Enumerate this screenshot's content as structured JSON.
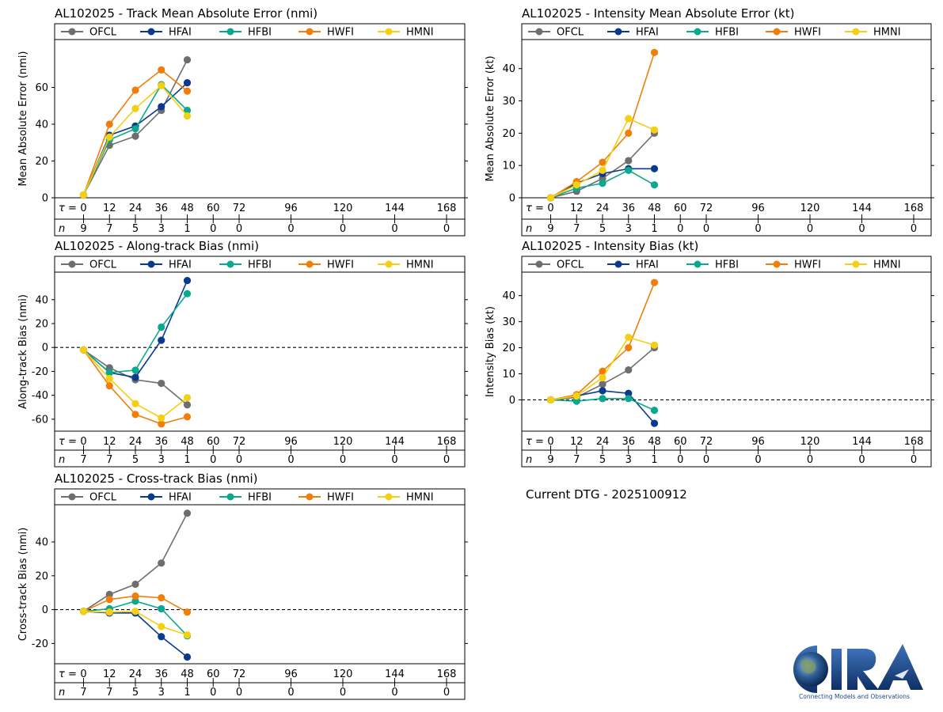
{
  "colors": {
    "OFCL": "#6e6e6e",
    "HFAI": "#0a3a8c",
    "HFBI": "#0aa88e",
    "HWFI": "#ef7f08",
    "HMNI": "#f5cf12"
  },
  "models": [
    "OFCL",
    "HFAI",
    "HFBI",
    "HWFI",
    "HMNI"
  ],
  "tau_label": "τ =",
  "n_label": "n",
  "tau_ticks": [
    "0",
    "12",
    "24",
    "36",
    "48",
    "60",
    "72",
    "96",
    "120",
    "144",
    "168"
  ],
  "current_dtg": "Current DTG - 2025100912",
  "logo_text": "CIRA",
  "logo_tagline": "Connecting Models and Observations",
  "chart_data": [
    {
      "type": "line",
      "title": "AL102025 - Track Mean Absolute Error (nmi)",
      "xlabel": "",
      "ylabel": "Mean Absolute Error (nmi)",
      "x": [
        0,
        12,
        24,
        36,
        48
      ],
      "ylim": [
        0,
        86
      ],
      "yticks": [
        0,
        20,
        40,
        60
      ],
      "zero_line": false,
      "n_values": [
        "9",
        "7",
        "5",
        "3",
        "1",
        "0",
        "0",
        "0",
        "0",
        "0",
        "0"
      ],
      "series": [
        {
          "name": "OFCL",
          "values": [
            1.5,
            28.5,
            33.5,
            47.5,
            75
          ]
        },
        {
          "name": "HFAI",
          "values": [
            1.5,
            34,
            39,
            49.5,
            62.5
          ]
        },
        {
          "name": "HFBI",
          "values": [
            1.5,
            31.5,
            37.5,
            61.5,
            47.5
          ]
        },
        {
          "name": "HWFI",
          "values": [
            1.5,
            40,
            58.5,
            69.5,
            58
          ]
        },
        {
          "name": "HMNI",
          "values": [
            1.5,
            33,
            48.5,
            61,
            44.5
          ]
        }
      ]
    },
    {
      "type": "line",
      "title": "AL102025 - Intensity Mean Absolute Error (kt)",
      "xlabel": "",
      "ylabel": "Mean Absolute Error (kt)",
      "x": [
        0,
        12,
        24,
        36,
        48
      ],
      "ylim": [
        0,
        49
      ],
      "yticks": [
        0,
        10,
        20,
        30,
        40
      ],
      "zero_line": false,
      "n_values": [
        "9",
        "7",
        "5",
        "3",
        "1",
        "0",
        "0",
        "0",
        "0",
        "0",
        "0"
      ],
      "series": [
        {
          "name": "OFCL",
          "values": [
            0,
            2,
            6,
            11.5,
            20
          ]
        },
        {
          "name": "HFAI",
          "values": [
            0,
            4.5,
            7.5,
            9,
            9
          ]
        },
        {
          "name": "HFBI",
          "values": [
            0,
            3,
            4.5,
            8.5,
            4
          ]
        },
        {
          "name": "HWFI",
          "values": [
            0,
            5,
            11,
            20,
            45
          ]
        },
        {
          "name": "HMNI",
          "values": [
            0,
            4,
            8.5,
            24.5,
            21
          ]
        }
      ]
    },
    {
      "type": "line",
      "title": "AL102025 - Along-track Bias (nmi)",
      "xlabel": "",
      "ylabel": "Along-track Bias (nmi)",
      "x": [
        0,
        12,
        24,
        36,
        48
      ],
      "ylim": [
        -70,
        63
      ],
      "yticks": [
        -60,
        -40,
        -20,
        0,
        20,
        40
      ],
      "zero_line": true,
      "n_values": [
        "7",
        "7",
        "5",
        "3",
        "1",
        "0",
        "0",
        "0",
        "0",
        "0",
        "0"
      ],
      "series": [
        {
          "name": "OFCL",
          "values": [
            -2,
            -17,
            -27,
            -30,
            -48
          ]
        },
        {
          "name": "HFAI",
          "values": [
            -2,
            -21,
            -25,
            6,
            56
          ]
        },
        {
          "name": "HFBI",
          "values": [
            -2,
            -21,
            -19,
            17,
            45
          ]
        },
        {
          "name": "HWFI",
          "values": [
            -2,
            -32,
            -56,
            -64,
            -58
          ]
        },
        {
          "name": "HMNI",
          "values": [
            -2,
            -26,
            -47,
            -59,
            -42
          ]
        }
      ]
    },
    {
      "type": "line",
      "title": "AL102025 - Intensity Bias (kt)",
      "xlabel": "",
      "ylabel": "Intensity Bias (kt)",
      "x": [
        0,
        12,
        24,
        36,
        48
      ],
      "ylim": [
        -12,
        49
      ],
      "yticks": [
        0,
        10,
        20,
        30,
        40
      ],
      "zero_line": true,
      "n_values": [
        "9",
        "7",
        "5",
        "3",
        "1",
        "0",
        "0",
        "0",
        "0",
        "0",
        "0"
      ],
      "series": [
        {
          "name": "OFCL",
          "values": [
            0,
            1,
            6,
            11.5,
            20
          ]
        },
        {
          "name": "HFAI",
          "values": [
            0,
            1.5,
            3.5,
            2.5,
            -9
          ]
        },
        {
          "name": "HFBI",
          "values": [
            0,
            -0.5,
            0.5,
            0.5,
            -4
          ]
        },
        {
          "name": "HWFI",
          "values": [
            0,
            2,
            11,
            20,
            45
          ]
        },
        {
          "name": "HMNI",
          "values": [
            0,
            1.5,
            8.5,
            24,
            21
          ]
        }
      ]
    },
    {
      "type": "line",
      "title": "AL102025 - Cross-track Bias (nmi)",
      "xlabel": "",
      "ylabel": "Cross-track Bias (nmi)",
      "x": [
        0,
        12,
        24,
        36,
        48
      ],
      "ylim": [
        -32,
        62
      ],
      "yticks": [
        -20,
        0,
        20,
        40
      ],
      "zero_line": true,
      "n_values": [
        "7",
        "7",
        "5",
        "3",
        "1",
        "0",
        "0",
        "0",
        "0",
        "0",
        "0"
      ],
      "series": [
        {
          "name": "OFCL",
          "values": [
            -1,
            9,
            15,
            27.5,
            57
          ]
        },
        {
          "name": "HFAI",
          "values": [
            -1,
            -2,
            -2,
            -16,
            -28
          ]
        },
        {
          "name": "HFBI",
          "values": [
            -1,
            0.5,
            5,
            0.5,
            -15.5
          ]
        },
        {
          "name": "HWFI",
          "values": [
            -1,
            6,
            8,
            7,
            -1.5
          ]
        },
        {
          "name": "HMNI",
          "values": [
            -1,
            -1.5,
            -1,
            -10,
            -15
          ]
        }
      ]
    }
  ]
}
